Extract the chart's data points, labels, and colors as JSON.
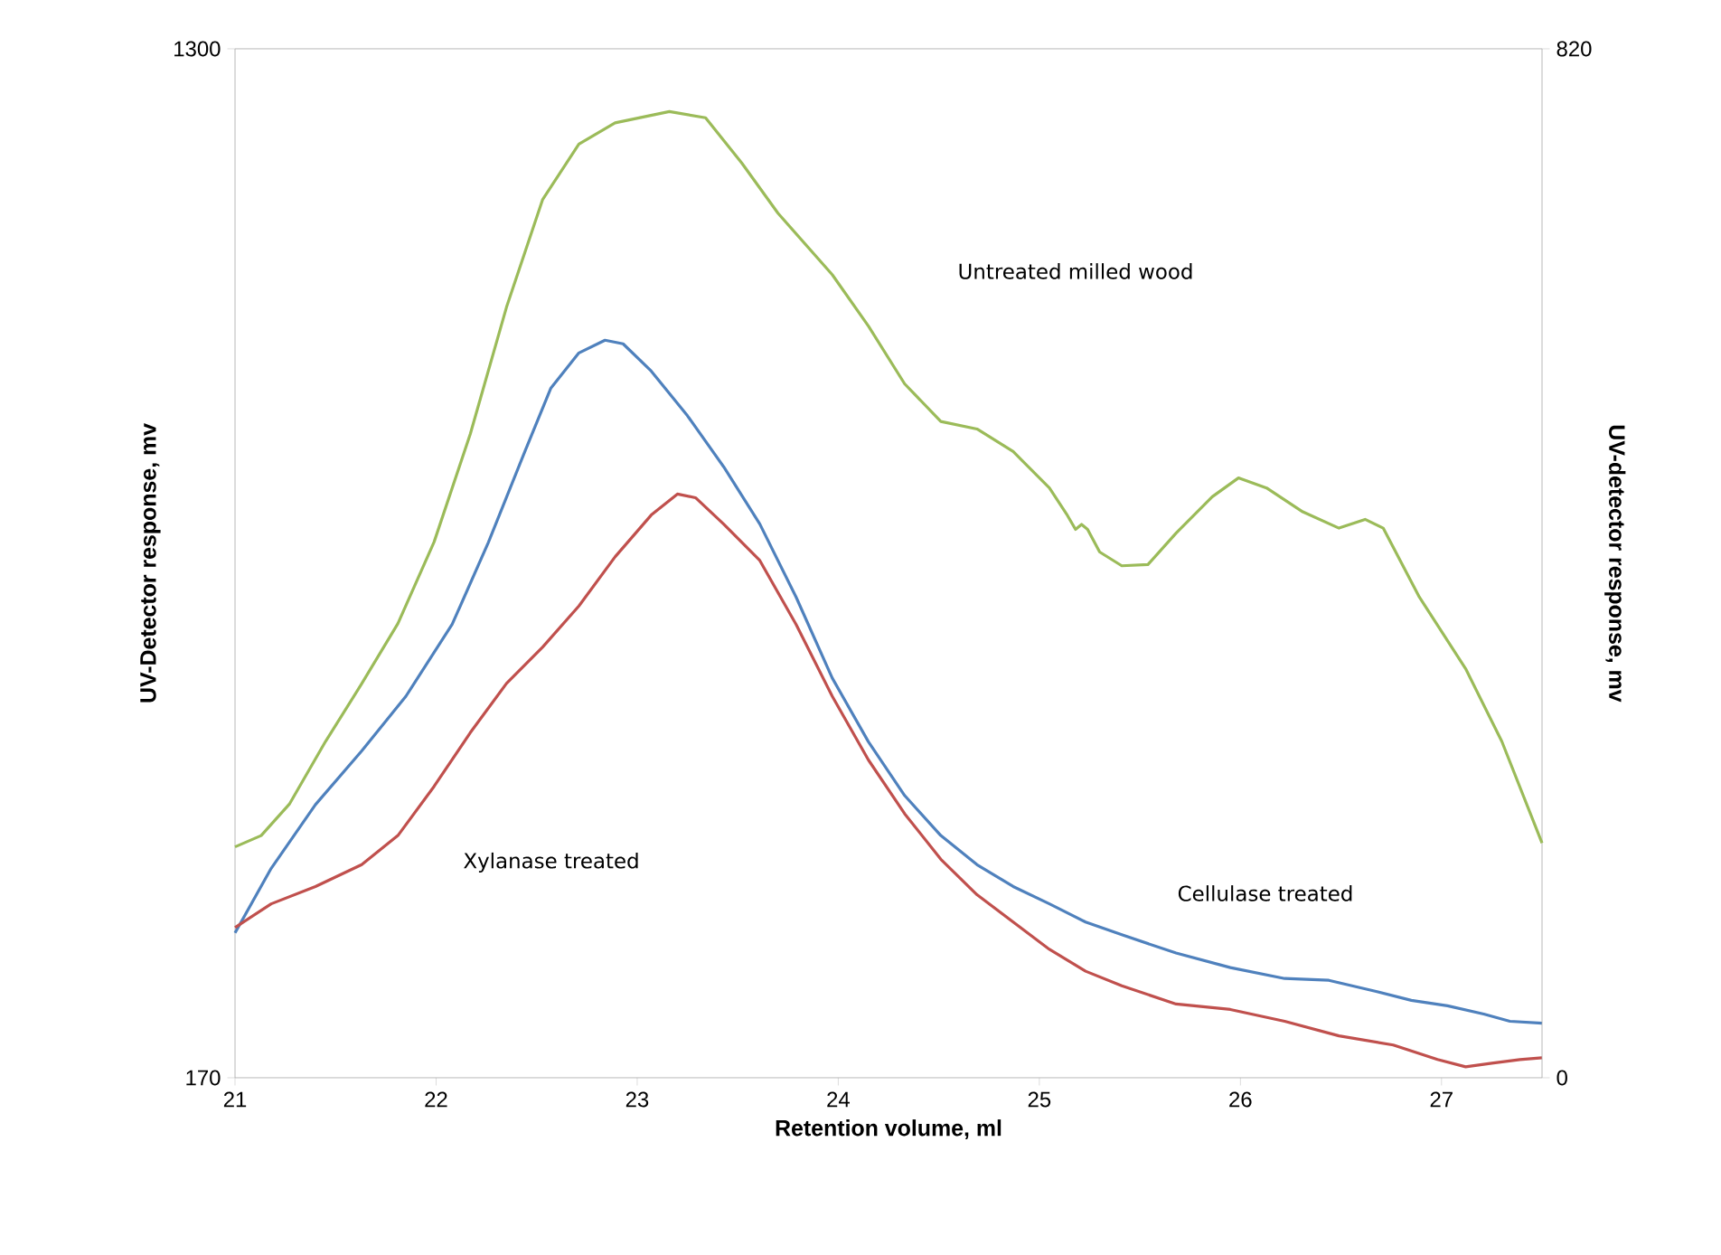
{
  "chart_data": {
    "type": "line",
    "xlabel": "Retention volume, ml",
    "ylabel": "UV-Detector response, mv",
    "y2label": "UV-detector response, mv",
    "xlim": [
      21,
      27.5
    ],
    "xticks": [
      21,
      22,
      23,
      24,
      25,
      26,
      27
    ],
    "ylim": [
      170,
      1300
    ],
    "yticks": [
      170,
      1300
    ],
    "y2lim": [
      0,
      820
    ],
    "y2ticks": [
      0,
      820
    ],
    "grid": false,
    "marker": "none",
    "line_style": "solid",
    "annotations": [
      "Untreated milled wood",
      "Xylanase treated",
      "Cellulase treated"
    ],
    "series": [
      {
        "color": "#9bbb59",
        "axis": "y2",
        "x": [
          21,
          21.13,
          21.27,
          21.45,
          21.63,
          21.81,
          21.99,
          22.17,
          22.35,
          22.53,
          22.71,
          22.89,
          23.16,
          23.34,
          23.52,
          23.7,
          23.97,
          24.15,
          24.33,
          24.51,
          24.69,
          24.87,
          25.05,
          25.14,
          25.18,
          25.21,
          25.24,
          25.3,
          25.41,
          25.54,
          25.68,
          25.86,
          25.99,
          26.13,
          26.31,
          26.49,
          26.62,
          26.71,
          26.89,
          27.12,
          27.3,
          27.5
        ],
        "values": [
          184,
          193,
          218,
          268,
          314,
          362,
          427,
          513,
          614,
          700,
          744,
          761,
          770,
          765,
          729,
          689,
          640,
          599,
          553,
          523,
          517,
          499,
          470,
          448,
          437,
          441,
          437,
          419,
          408,
          409,
          434,
          463,
          478,
          470,
          451,
          438,
          445,
          438,
          383,
          326,
          268,
          187
        ]
      },
      {
        "color": "#4f81bd",
        "axis": "y",
        "x": [
          21,
          21.18,
          21.4,
          21.63,
          21.85,
          22.08,
          22.26,
          22.44,
          22.57,
          22.71,
          22.84,
          22.93,
          23.07,
          23.25,
          23.43,
          23.61,
          23.79,
          23.97,
          24.15,
          24.33,
          24.51,
          24.69,
          24.87,
          25.05,
          25.23,
          25.41,
          25.68,
          25.95,
          26.22,
          26.44,
          26.67,
          26.85,
          27.03,
          27.21,
          27.34,
          27.5
        ],
        "values": [
          329,
          400,
          470,
          529,
          589,
          668,
          758,
          857,
          927,
          966,
          980,
          976,
          946,
          897,
          841,
          778,
          698,
          609,
          539,
          480,
          436,
          404,
          380,
          361,
          341,
          327,
          307,
          291,
          279,
          277,
          265,
          255,
          249,
          240,
          232,
          230
        ]
      },
      {
        "color": "#c0504d",
        "axis": "y",
        "x": [
          21,
          21.18,
          21.4,
          21.63,
          21.81,
          21.99,
          22.17,
          22.35,
          22.53,
          22.71,
          22.89,
          23.07,
          23.2,
          23.29,
          23.43,
          23.61,
          23.79,
          23.97,
          24.15,
          24.33,
          24.51,
          24.69,
          24.87,
          25.05,
          25.23,
          25.41,
          25.68,
          25.95,
          26.22,
          26.49,
          26.76,
          26.98,
          27.12,
          27.25,
          27.39,
          27.5
        ],
        "values": [
          335,
          361,
          380,
          404,
          436,
          490,
          549,
          603,
          643,
          688,
          742,
          788,
          811,
          807,
          778,
          738,
          668,
          589,
          519,
          460,
          410,
          371,
          341,
          311,
          287,
          271,
          251,
          245,
          232,
          216,
          206,
          190,
          182,
          186,
          190,
          192
        ]
      }
    ]
  }
}
